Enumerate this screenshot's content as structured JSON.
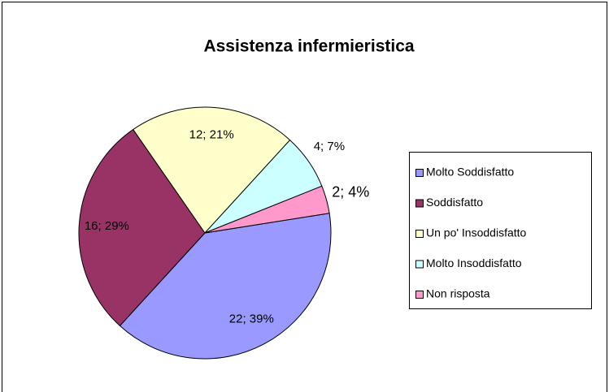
{
  "chart_data": {
    "type": "pie",
    "title": "Assistenza infermieristica",
    "categories": [
      "Molto Soddisfatto",
      "Soddisfatto",
      "Un po' Insoddisfatto",
      "Molto Insoddisfatto",
      "Non risposta"
    ],
    "values": [
      22,
      16,
      12,
      4,
      2
    ],
    "value_labels": [
      "22; 39%",
      "16; 29%",
      "12; 21%",
      "4; 7%",
      "2; 4%"
    ],
    "colors": [
      "#9999ff",
      "#993366",
      "#ffffcc",
      "#ccffff",
      "#ff99cc"
    ],
    "legend": "right"
  }
}
